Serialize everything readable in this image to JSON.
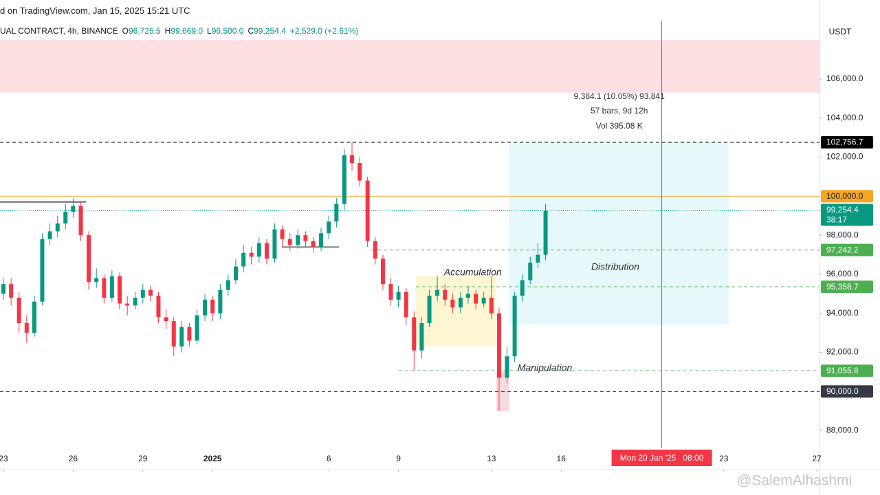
{
  "header": {
    "source": "d on TradingView.com, Jan 15, 2025 15:21 UTC",
    "symbol": "UAL CONTRACT, 4h, BINANCE",
    "ohlc": [
      {
        "k": "O",
        "v": "96,725.5"
      },
      {
        "k": "H",
        "v": "99,669.0"
      },
      {
        "k": "L",
        "v": "96,500.0"
      },
      {
        "k": "C",
        "v": "99,254.4"
      }
    ],
    "change": "+2,529.0 (+2.61%)"
  },
  "chart_data": {
    "type": "candlestick",
    "currency": "USDT",
    "up_color": "#089981",
    "down_color": "#f23645",
    "x": [
      0,
      0.33,
      0.67,
      1,
      1.33,
      1.67,
      2,
      2.33,
      2.67,
      3,
      3.33,
      3.67,
      4,
      4.33,
      4.67,
      5,
      5.33,
      5.67,
      6,
      6.33,
      6.67,
      7,
      7.33,
      7.67,
      8,
      8.33,
      8.67,
      9,
      9.33,
      9.67,
      10,
      10.33,
      10.67,
      11,
      11.33,
      11.67,
      12,
      12.33,
      12.67,
      13,
      13.33,
      13.67,
      14,
      14.33,
      14.67,
      15,
      15.33,
      15.67,
      16,
      16.33,
      16.67,
      17,
      17.33,
      17.67,
      18,
      18.33,
      18.67,
      19,
      19.33,
      19.67,
      20,
      20.33,
      20.67,
      21,
      21.33,
      21.67,
      22,
      22.33,
      22.67,
      23,
      23.33
    ],
    "open": [
      95000,
      95500,
      94800,
      93500,
      93000,
      94600,
      97800,
      98200,
      98600,
      99200,
      99500,
      98000,
      95600,
      95800,
      94800,
      95900,
      94500,
      94400,
      94800,
      95200,
      94900,
      93800,
      93600,
      92300,
      93300,
      92600,
      93900,
      94700,
      94000,
      95200,
      95700,
      96400,
      97100,
      96900,
      97600,
      96800,
      98300,
      97800,
      97500,
      98000,
      97700,
      97400,
      98100,
      98700,
      99600,
      102100,
      101700,
      100800,
      97700,
      96800,
      95500,
      94700,
      95100,
      93800,
      92100,
      93500,
      94900,
      95200,
      94700,
      94300,
      94800,
      95000,
      94500,
      94800,
      94000,
      90700,
      91800,
      94900,
      95700,
      96600,
      97000
    ],
    "high": [
      95800,
      95800,
      95100,
      93900,
      94900,
      98100,
      98600,
      99000,
      99600,
      99900,
      99700,
      98200,
      96300,
      96000,
      96200,
      96100,
      94900,
      95100,
      95500,
      95400,
      95100,
      94200,
      93800,
      93600,
      93500,
      94200,
      95000,
      94900,
      95500,
      96000,
      96800,
      97500,
      97400,
      97900,
      97800,
      98600,
      98500,
      98100,
      98300,
      98200,
      97900,
      98400,
      99000,
      99900,
      102400,
      102756.7,
      102000,
      101000,
      97900,
      97000,
      95800,
      95400,
      95300,
      94100,
      93800,
      95200,
      95900,
      95500,
      95000,
      95100,
      95400,
      95200,
      95100,
      95900,
      94300,
      92300,
      95100,
      96000,
      96900,
      97600,
      99600
    ],
    "low": [
      94700,
      94400,
      93000,
      92500,
      92800,
      94400,
      97500,
      97900,
      98300,
      98900,
      97700,
      95200,
      95300,
      94500,
      94600,
      94200,
      93900,
      94200,
      94500,
      94600,
      93500,
      93200,
      91800,
      92000,
      92300,
      92400,
      93600,
      93600,
      93700,
      94900,
      95500,
      96100,
      96500,
      96600,
      96500,
      96600,
      97400,
      97200,
      97300,
      97400,
      97100,
      97200,
      97800,
      98400,
      99300,
      101300,
      100500,
      97400,
      96500,
      95200,
      94400,
      94300,
      93400,
      91055.8,
      91700,
      93300,
      94600,
      94400,
      94000,
      94000,
      94500,
      94200,
      94300,
      93700,
      89000,
      90400,
      91500,
      94600,
      95500,
      96300,
      96700
    ],
    "close": [
      95500,
      94800,
      93500,
      93000,
      94600,
      97800,
      98200,
      98600,
      99200,
      99500,
      98000,
      95600,
      95800,
      94800,
      95900,
      94500,
      94400,
      94800,
      95200,
      94900,
      93800,
      93600,
      92300,
      93300,
      92600,
      93900,
      94700,
      94000,
      95200,
      95700,
      96400,
      97100,
      96900,
      97600,
      96800,
      98300,
      97800,
      97500,
      98000,
      97700,
      97400,
      98100,
      98700,
      99600,
      102100,
      101700,
      100800,
      97700,
      96800,
      95500,
      94700,
      95100,
      93800,
      92100,
      93500,
      94900,
      95200,
      94700,
      94300,
      94800,
      95000,
      94500,
      94800,
      94000,
      90700,
      91800,
      94900,
      95700,
      96600,
      97000,
      99254.4
    ],
    "xlim": [
      -0.148,
      35.118
    ],
    "xticks": [
      {
        "value": 0,
        "label": "23"
      },
      {
        "value": 3,
        "label": "26"
      },
      {
        "value": 6,
        "label": "29"
      },
      {
        "value": 9,
        "label": "2025"
      },
      {
        "value": 14,
        "label": "6"
      },
      {
        "value": 17,
        "label": "9"
      },
      {
        "value": 21,
        "label": "13"
      },
      {
        "value": 24,
        "label": "16"
      },
      {
        "value": 31,
        "label": "23"
      },
      {
        "value": 35,
        "label": "27"
      }
    ],
    "ylim": [
      87090,
      108990
    ],
    "yticks": [
      {
        "value": 88000,
        "label": "88,000.0"
      },
      {
        "value": 92000,
        "label": "92,000.0"
      },
      {
        "value": 94000,
        "label": "94,000.0"
      },
      {
        "value": 96000,
        "label": "96,000.0"
      },
      {
        "value": 98000,
        "label": "98,000.0"
      },
      {
        "value": 102000,
        "label": "102,000.0"
      },
      {
        "value": 104000,
        "label": "104,000.0"
      },
      {
        "value": 106000,
        "label": "106,000.0"
      }
    ],
    "zones": [
      {
        "x": [
          -0.148,
          35.118
        ],
        "y": [
          105300,
          108000
        ],
        "color": "#fde0e2"
      },
      {
        "x": [
          17.75,
          21.21
        ],
        "y": [
          92300,
          95900
        ],
        "color": "#fdf6d3"
      },
      {
        "x": [
          21.21,
          21.75
        ],
        "y": [
          89000,
          91000
        ],
        "color": "#f9d9db"
      },
      {
        "x": [
          21.75,
          31.21
        ],
        "y": [
          93400,
          102756.7
        ],
        "color": "#e6f8f9"
      }
    ],
    "segments": [
      {
        "x": [
          -0.148,
          3.55
        ],
        "y": 99700
      },
      {
        "x": [
          11.98,
          14.44
        ],
        "y": 97400
      }
    ],
    "levels": [
      {
        "value": 102756.7,
        "label": "102,756.7",
        "color": "#000000",
        "text_color": "#ffffff",
        "style": "dashed"
      },
      {
        "value": 100000,
        "label": "100,000.0",
        "color": "#f5a623",
        "text_color": "#131722",
        "style": "solid"
      },
      {
        "value": 99254.4,
        "label": "99,254.4",
        "sublabel": "38:17",
        "color": "#089981",
        "text_color": "#ffffff",
        "style": "dotted"
      },
      {
        "value": 97242.2,
        "label": "97,242.2",
        "color": "#4caf50",
        "text_color": "#ffffff",
        "style": "dashed",
        "x_from": 15.83
      },
      {
        "value": 95358.7,
        "label": "95,358.7",
        "color": "#4caf50",
        "text_color": "#ffffff",
        "style": "dashed",
        "x_from": 17.75
      },
      {
        "value": 91055.8,
        "label": "91,055.8",
        "color": "#4caf50",
        "text_color": "#ffffff",
        "style": "dashed",
        "x_from": 17.0
      },
      {
        "value": 90000,
        "label": "90,000.0",
        "color": "#363a45",
        "text_color": "#ffffff",
        "style": "dashed"
      }
    ],
    "annotations": [
      {
        "text": "Accumulation",
        "x": 20.2,
        "y": 96070,
        "italic": true,
        "size": 14
      },
      {
        "text": "Distribution",
        "x": 26.33,
        "y": 96350,
        "italic": true,
        "size": 14
      },
      {
        "text": "Manipulation",
        "x": 23.3,
        "y": 91175,
        "italic": true,
        "size": 14
      },
      {
        "text": "9,384.1 (10.05%) 93,841",
        "x": 26.5,
        "y": 105085,
        "italic": false,
        "size": 12
      },
      {
        "text": "57 bars, 9d 12h",
        "x": 26.5,
        "y": 104346,
        "italic": false,
        "size": 12
      },
      {
        "text": "Vol 395.08 K",
        "x": 26.5,
        "y": 103570,
        "italic": false,
        "size": 12
      }
    ],
    "crosshair": {
      "x": 28.33,
      "label": "Mon 20 Jan '25   08:00",
      "color": "#f23645"
    },
    "watermark": "@SalemAlhashmi"
  }
}
